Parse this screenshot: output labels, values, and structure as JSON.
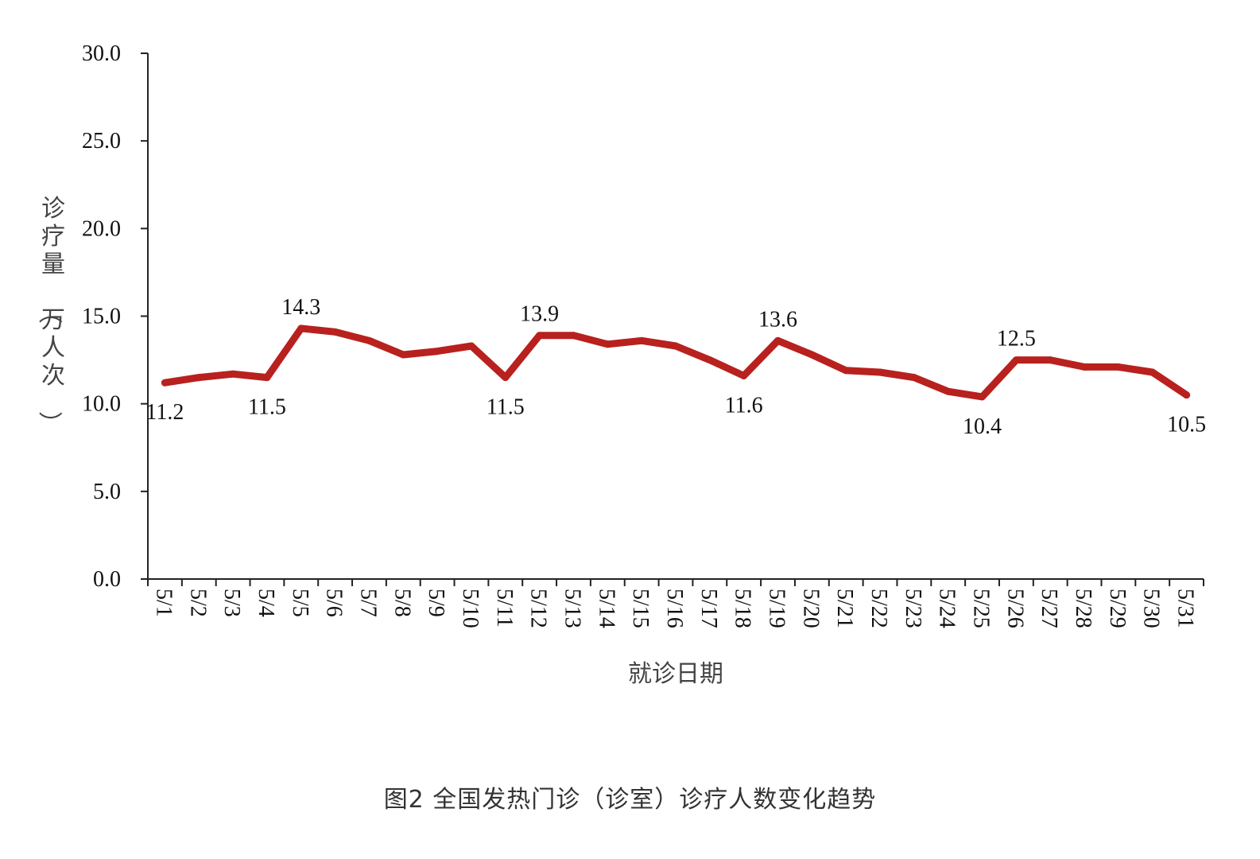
{
  "caption": "图2 全国发热门诊（诊室）诊疗人数变化趋势",
  "colors": {
    "line": "#b8211e",
    "axis": "#222222",
    "text": "#111111"
  },
  "chart_data": {
    "type": "line",
    "title": "",
    "xlabel": "就诊日期",
    "ylabel": "诊疗量（万人次）",
    "ylim": [
      0,
      30
    ],
    "yticks": [
      0,
      5,
      10,
      15,
      20,
      25,
      30
    ],
    "ytick_labels": [
      "0.0",
      "5.0",
      "10.0",
      "15.0",
      "20.0",
      "25.0",
      "30.0"
    ],
    "grid": false,
    "legend": "none",
    "categories": [
      "5/1",
      "5/2",
      "5/3",
      "5/4",
      "5/5",
      "5/6",
      "5/7",
      "5/8",
      "5/9",
      "5/10",
      "5/11",
      "5/12",
      "5/13",
      "5/14",
      "5/15",
      "5/16",
      "5/17",
      "5/18",
      "5/19",
      "5/20",
      "5/21",
      "5/22",
      "5/23",
      "5/24",
      "5/25",
      "5/26",
      "5/27",
      "5/28",
      "5/29",
      "5/30",
      "5/31"
    ],
    "series": [
      {
        "values": [
          11.2,
          11.5,
          11.7,
          11.5,
          14.3,
          14.1,
          13.6,
          12.8,
          13.0,
          13.3,
          11.5,
          13.9,
          13.9,
          13.4,
          13.6,
          13.3,
          12.5,
          11.6,
          13.6,
          12.8,
          11.9,
          11.8,
          11.5,
          10.7,
          10.4,
          12.5,
          12.5,
          12.1,
          12.1,
          11.8,
          10.5
        ]
      }
    ],
    "annotations": [
      {
        "index": 0,
        "text": "11.2",
        "position": "below"
      },
      {
        "index": 3,
        "text": "11.5",
        "position": "below"
      },
      {
        "index": 4,
        "text": "14.3",
        "position": "above"
      },
      {
        "index": 10,
        "text": "11.5",
        "position": "below"
      },
      {
        "index": 11,
        "text": "13.9",
        "position": "above"
      },
      {
        "index": 17,
        "text": "11.6",
        "position": "below"
      },
      {
        "index": 18,
        "text": "13.6",
        "position": "above"
      },
      {
        "index": 24,
        "text": "10.4",
        "position": "below"
      },
      {
        "index": 25,
        "text": "12.5",
        "position": "above"
      },
      {
        "index": 30,
        "text": "10.5",
        "position": "below"
      }
    ]
  }
}
